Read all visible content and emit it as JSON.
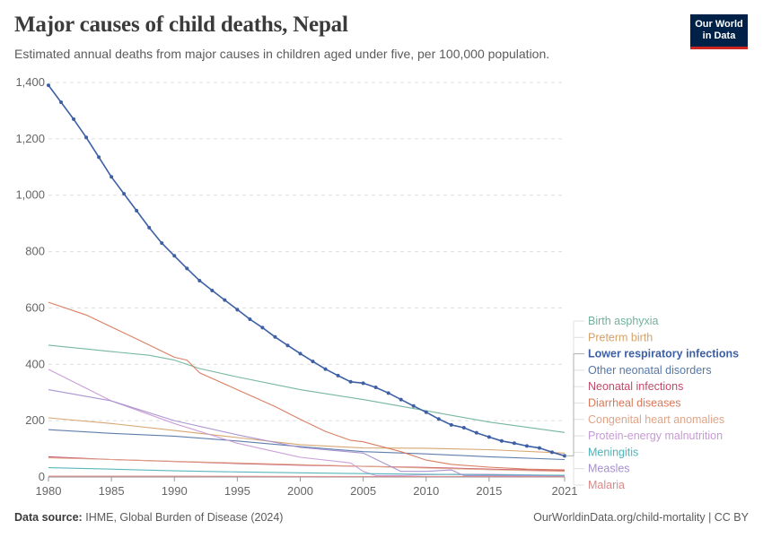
{
  "header": {
    "title": "Major causes of child deaths, Nepal",
    "subtitle": "Estimated annual deaths from major causes in children aged under five, per 100,000 population.",
    "logo_line1": "Our World",
    "logo_line2": "in Data"
  },
  "footer": {
    "source_label": "Data source:",
    "source_text": "IHME, Global Burden of Disease (2024)",
    "url": "OurWorldinData.org/child-mortality | CC BY"
  },
  "chart_data": {
    "type": "line",
    "title": "Major causes of child deaths, Nepal",
    "xlim": [
      1980,
      2021
    ],
    "ylim": [
      0,
      1400
    ],
    "y_ticks": [
      0,
      200,
      400,
      600,
      800,
      1000,
      1200,
      1400
    ],
    "y_tick_labels": [
      "0",
      "200",
      "400",
      "600",
      "800",
      "1,000",
      "1,200",
      "1,400"
    ],
    "x_ticks": [
      1980,
      1985,
      1990,
      1995,
      2000,
      2005,
      2010,
      2015,
      2021
    ],
    "x_tick_labels": [
      "1980",
      "1985",
      "1990",
      "1995",
      "2000",
      "2005",
      "2010",
      "2015",
      "2021"
    ],
    "grid": "horizontal dashed",
    "legend": "right, labels at line ends",
    "highlighted_series": "Lower respiratory infections",
    "series": [
      {
        "name": "Birth asphyxia",
        "color": "#6fb39b",
        "x": [
          1980,
          1985,
          1988,
          1990,
          1992,
          1995,
          2000,
          2005,
          2010,
          2015,
          2021
        ],
        "values": [
          468,
          445,
          432,
          415,
          385,
          355,
          310,
          275,
          235,
          195,
          158
        ]
      },
      {
        "name": "Preterm birth",
        "color": "#d4a26a",
        "x": [
          1980,
          1985,
          1990,
          1995,
          2000,
          2005,
          2010,
          2015,
          2021
        ],
        "values": [
          210,
          190,
          165,
          140,
          115,
          103,
          102,
          97,
          85
        ]
      },
      {
        "name": "Lower respiratory infections",
        "color": "#3d5fa5",
        "markers": true,
        "x": [
          1980,
          1981,
          1982,
          1983,
          1984,
          1985,
          1986,
          1987,
          1988,
          1989,
          1990,
          1991,
          1992,
          1993,
          1994,
          1995,
          1996,
          1997,
          1998,
          1999,
          2000,
          2001,
          2002,
          2003,
          2004,
          2005,
          2006,
          2007,
          2008,
          2009,
          2010,
          2011,
          2012,
          2013,
          2014,
          2015,
          2016,
          2017,
          2018,
          2019,
          2020,
          2021
        ],
        "values": [
          1390,
          1330,
          1270,
          1205,
          1135,
          1065,
          1005,
          945,
          885,
          830,
          785,
          740,
          697,
          662,
          628,
          594,
          560,
          530,
          497,
          467,
          438,
          410,
          383,
          360,
          338,
          333,
          318,
          298,
          275,
          252,
          230,
          206,
          185,
          175,
          157,
          142,
          128,
          120,
          110,
          103,
          88,
          75
        ]
      },
      {
        "name": "Other neonatal disorders",
        "color": "#5677a8",
        "x": [
          1980,
          1985,
          1990,
          1995,
          2000,
          2005,
          2010,
          2015,
          2021
        ],
        "values": [
          168,
          155,
          145,
          128,
          108,
          90,
          82,
          72,
          62
        ]
      },
      {
        "name": "Neonatal infections",
        "color": "#c24a6b",
        "x": [
          1980,
          1985,
          1990,
          1995,
          2000,
          2005,
          2010,
          2015,
          2021
        ],
        "values": [
          72,
          62,
          55,
          48,
          42,
          38,
          34,
          28,
          22
        ]
      },
      {
        "name": "Diarrheal diseases",
        "color": "#d8785a",
        "x": [
          1980,
          1983,
          1987,
          1990,
          1991,
          1992,
          1995,
          1998,
          2000,
          2002,
          2004,
          2005,
          2008,
          2010,
          2012,
          2015,
          2018,
          2021
        ],
        "values": [
          620,
          575,
          490,
          425,
          415,
          370,
          310,
          250,
          205,
          162,
          130,
          125,
          90,
          60,
          45,
          35,
          28,
          25
        ]
      },
      {
        "name": "Congenital heart anomalies",
        "color": "#e0a488",
        "x": [
          1980,
          1985,
          1990,
          1995,
          2000,
          2005,
          2010,
          2015,
          2021
        ],
        "values": [
          68,
          62,
          56,
          50,
          44,
          38,
          32,
          26,
          20
        ]
      },
      {
        "name": "Protein-energy malnutrition",
        "color": "#c89ad6",
        "x": [
          1980,
          1985,
          1990,
          1995,
          2000,
          2004,
          2005,
          2006,
          2008,
          2010,
          2012,
          2015,
          2021
        ],
        "values": [
          382,
          270,
          190,
          120,
          70,
          50,
          20,
          5,
          5,
          8,
          10,
          10,
          5
        ]
      },
      {
        "name": "Meningitis",
        "color": "#4fb3b8",
        "x": [
          1980,
          1985,
          1990,
          1995,
          2000,
          2005,
          2010,
          2015,
          2021
        ],
        "values": [
          33,
          28,
          22,
          18,
          15,
          12,
          10,
          8,
          6
        ]
      },
      {
        "name": "Measles",
        "color": "#a58fcf",
        "x": [
          1980,
          1985,
          1990,
          1995,
          2000,
          2005,
          2008,
          2010,
          2012,
          2013,
          2015,
          2021
        ],
        "values": [
          310,
          270,
          200,
          150,
          105,
          85,
          20,
          20,
          25,
          5,
          5,
          3
        ]
      },
      {
        "name": "Malaria",
        "color": "#d98a8a",
        "x": [
          1980,
          1990,
          2000,
          2010,
          2021
        ],
        "values": [
          3,
          3,
          2,
          2,
          1
        ]
      }
    ]
  }
}
